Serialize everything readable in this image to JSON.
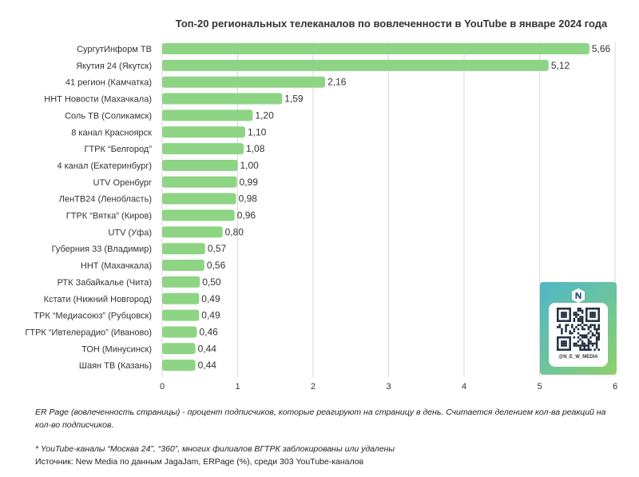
{
  "chart_data": {
    "type": "bar",
    "orientation": "horizontal",
    "title": "Топ-20 региональных телеканалов по вовлеченности в YouTube в январе 2024 года",
    "categories": [
      "СургутИнформ ТВ",
      "Якутия 24 (Якутск)",
      "41 регион (Камчатка)",
      "ННТ Новости (Махачкала)",
      "Соль ТВ (Соликамск)",
      "8 канал Красноярск",
      "ГТРК “Белгород”",
      "4 канал (Екатеринбург)",
      "UTV Оренбург",
      "ЛенТВ24 (Ленобласть)",
      "ГТРК “Вятка” (Киров)",
      "UTV (Уфа)",
      "Губерния 33 (Владимир)",
      "ННТ (Махачкала)",
      "РТК Забайкалье (Чита)",
      "Кстати (Нижний Новгород)",
      "ТРК “Медиасоюз” (Рубцовск)",
      "ГТРК “Ивтелерадио” (Иваново)",
      "ТОН (Минусинск)",
      "Шаян ТВ (Казань)"
    ],
    "values": [
      5.66,
      5.12,
      2.16,
      1.59,
      1.2,
      1.1,
      1.08,
      1.0,
      0.99,
      0.98,
      0.96,
      0.8,
      0.57,
      0.56,
      0.5,
      0.49,
      0.49,
      0.46,
      0.44,
      0.44
    ],
    "value_labels": [
      "5,66",
      "5,12",
      "2,16",
      "1,59",
      "1,20",
      "1,10",
      "1,08",
      "1,00",
      "0,99",
      "0,98",
      "0,96",
      "0,80",
      "0,57",
      "0,56",
      "0,50",
      "0,49",
      "0,49",
      "0,46",
      "0,44",
      "0,44"
    ],
    "xlim": [
      0,
      6
    ],
    "xticks": [
      "0",
      "1",
      "2",
      "3",
      "4",
      "5",
      "6"
    ],
    "grid": true,
    "bar_color": "#8dd484",
    "grid_color": "#d9d9d9"
  },
  "qr_card": {
    "handle": "@N_E_W_MEDIA"
  },
  "notes": {
    "definition": "ER Page (вовлеченность страницы) - процент подписчиков, которые реагируют на страницу в день. Считается делением кол-ва реакций на кол-во подписчиков.",
    "footnote": "* YouTube-каналы “Москва 24”, “360”, многих филиалов ВГТРК заблокированы или удалены",
    "source": "Источник: New Media по данным JagaJam, ERPage (%), среди 303 YouTube-каналов"
  }
}
